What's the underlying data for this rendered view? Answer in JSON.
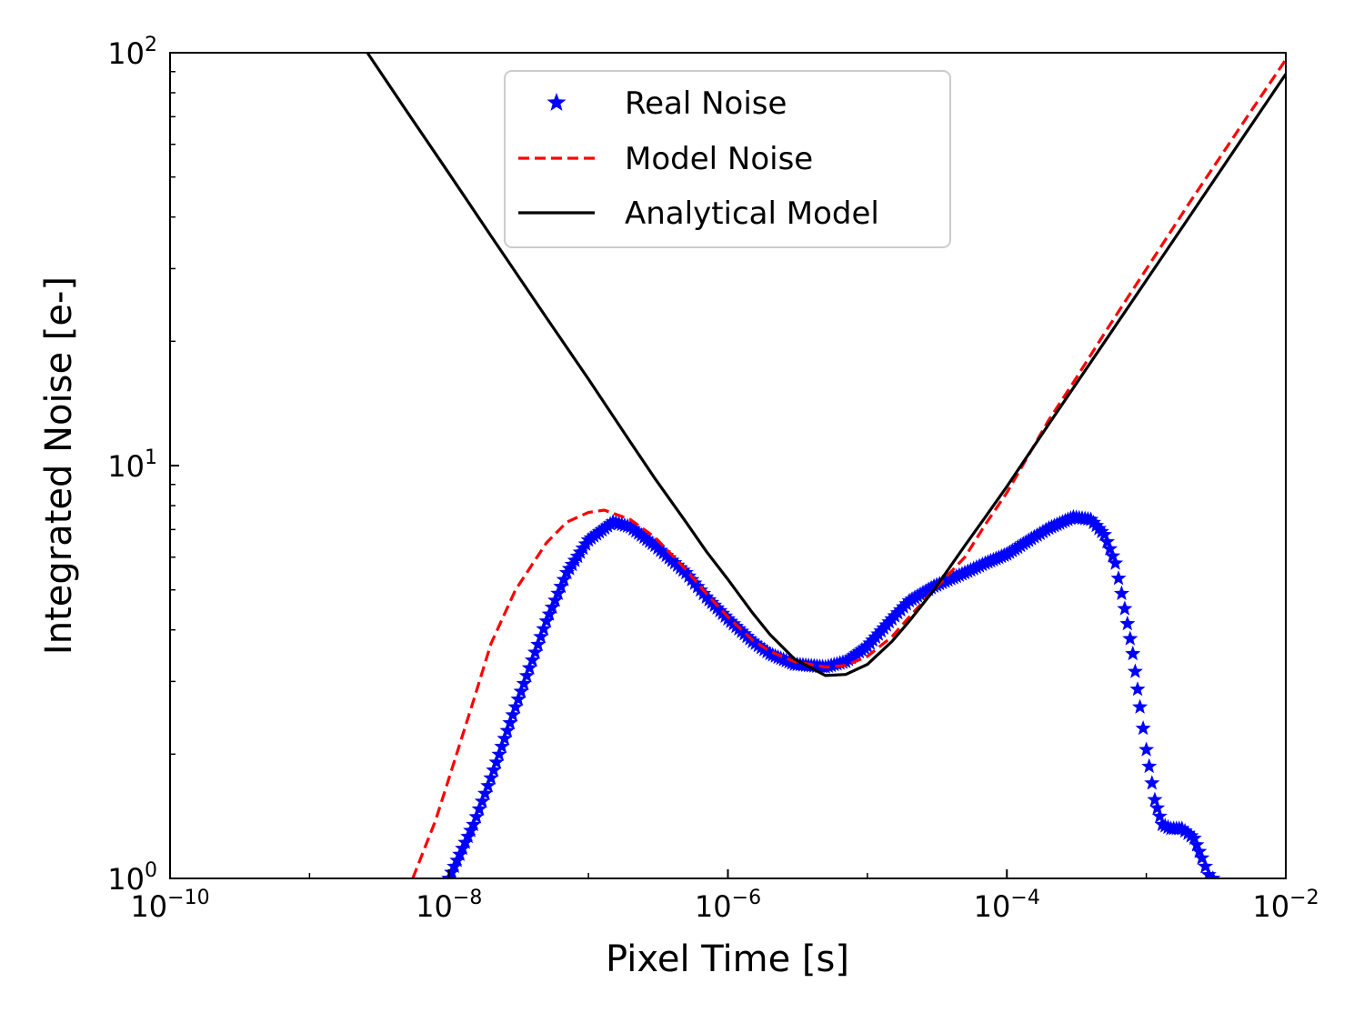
{
  "chart_data": {
    "type": "line",
    "title": "",
    "xlabel": "Pixel Time [s]",
    "ylabel": "Integrated Noise [e-]",
    "x_scale": "log",
    "y_scale": "log",
    "xlim": [
      1e-10,
      0.01
    ],
    "ylim": [
      1,
      100
    ],
    "grid": false,
    "legend_position": "top-center",
    "x_ticks": [
      {
        "value": 1e-10,
        "base": "10",
        "exp": "−10"
      },
      {
        "value": 1e-08,
        "base": "10",
        "exp": "−8"
      },
      {
        "value": 1e-06,
        "base": "10",
        "exp": "−6"
      },
      {
        "value": 0.0001,
        "base": "10",
        "exp": "−4"
      },
      {
        "value": 0.01,
        "base": "10",
        "exp": "−2"
      }
    ],
    "y_ticks": [
      {
        "value": 1,
        "base": "10",
        "exp": "0"
      },
      {
        "value": 10,
        "base": "10",
        "exp": "1"
      },
      {
        "value": 100,
        "base": "10",
        "exp": "2"
      }
    ],
    "series": [
      {
        "name": "Real Noise",
        "style": "markers",
        "marker": "star",
        "color": "#0000ff",
        "x": [
          1e-08,
          1.5e-08,
          2e-08,
          3e-08,
          5e-08,
          7e-08,
          1e-07,
          1.5e-07,
          2e-07,
          3e-07,
          5e-07,
          7e-07,
          1e-06,
          1.5e-06,
          2e-06,
          3e-06,
          5e-06,
          7e-06,
          1e-05,
          1.5e-05,
          2e-05,
          3e-05,
          5e-05,
          7e-05,
          0.0001,
          0.00015,
          0.0002,
          0.0003,
          0.0004,
          0.0005,
          0.0006,
          0.0007,
          0.0008,
          0.0009,
          0.001,
          0.00115,
          0.0013,
          0.0015,
          0.0018,
          0.0022,
          0.0025,
          0.0028,
          0.003
        ],
        "y": [
          1.0,
          1.35,
          1.75,
          2.6,
          4.2,
          5.5,
          6.6,
          7.3,
          7.1,
          6.4,
          5.5,
          4.8,
          4.25,
          3.75,
          3.5,
          3.3,
          3.25,
          3.35,
          3.65,
          4.25,
          4.7,
          5.1,
          5.5,
          5.8,
          6.1,
          6.65,
          7.05,
          7.5,
          7.4,
          6.8,
          5.8,
          4.5,
          3.5,
          2.6,
          2.05,
          1.55,
          1.35,
          1.32,
          1.32,
          1.25,
          1.12,
          1.02,
          1.0
        ]
      },
      {
        "name": "Model Noise",
        "style": "dashed",
        "color": "#ff0000",
        "x": [
          5.5e-09,
          8e-09,
          1e-08,
          1.5e-08,
          2e-08,
          3e-08,
          5e-08,
          7e-08,
          1e-07,
          1.3e-07,
          2e-07,
          3e-07,
          5e-07,
          7e-07,
          1e-06,
          1.5e-06,
          2e-06,
          3e-06,
          5e-06,
          7e-06,
          1e-05,
          1.5e-05,
          2e-05,
          3e-05,
          5e-05,
          7e-05,
          0.0001,
          0.00015,
          0.0002,
          0.0003,
          0.0005,
          0.0007,
          0.001,
          0.002,
          0.003,
          0.005,
          0.007,
          0.01
        ],
        "y": [
          1.0,
          1.38,
          1.75,
          2.7,
          3.7,
          5.0,
          6.5,
          7.3,
          7.7,
          7.8,
          7.4,
          6.7,
          5.6,
          4.9,
          4.3,
          3.78,
          3.55,
          3.35,
          3.25,
          3.28,
          3.45,
          3.85,
          4.3,
          5.0,
          6.0,
          7.2,
          8.6,
          10.9,
          12.9,
          15.9,
          20.9,
          24.9,
          29.9,
          42.9,
          52.6,
          68.0,
          80.5,
          96.2
        ]
      },
      {
        "name": "Analytical Model",
        "style": "solid",
        "color": "#000000",
        "x": [
          2.6e-09,
          5e-09,
          1e-08,
          2e-08,
          5e-08,
          1e-07,
          2e-07,
          3e-07,
          5e-07,
          7e-07,
          1e-06,
          1.5e-06,
          2e-06,
          3e-06,
          5e-06,
          7e-06,
          1e-05,
          1.5e-05,
          2e-05,
          3e-05,
          5e-05,
          7e-05,
          0.0001,
          0.0002,
          0.0005,
          0.001,
          0.002,
          0.005,
          0.01
        ],
        "y": [
          100.0,
          72.0,
          51.0,
          36.0,
          22.8,
          16.2,
          11.4,
          9.3,
          7.3,
          6.2,
          5.3,
          4.4,
          3.9,
          3.4,
          3.1,
          3.12,
          3.3,
          3.75,
          4.2,
          5.0,
          6.4,
          7.5,
          8.9,
          12.6,
          19.9,
          28.1,
          39.7,
          62.8,
          88.8
        ]
      }
    ]
  }
}
